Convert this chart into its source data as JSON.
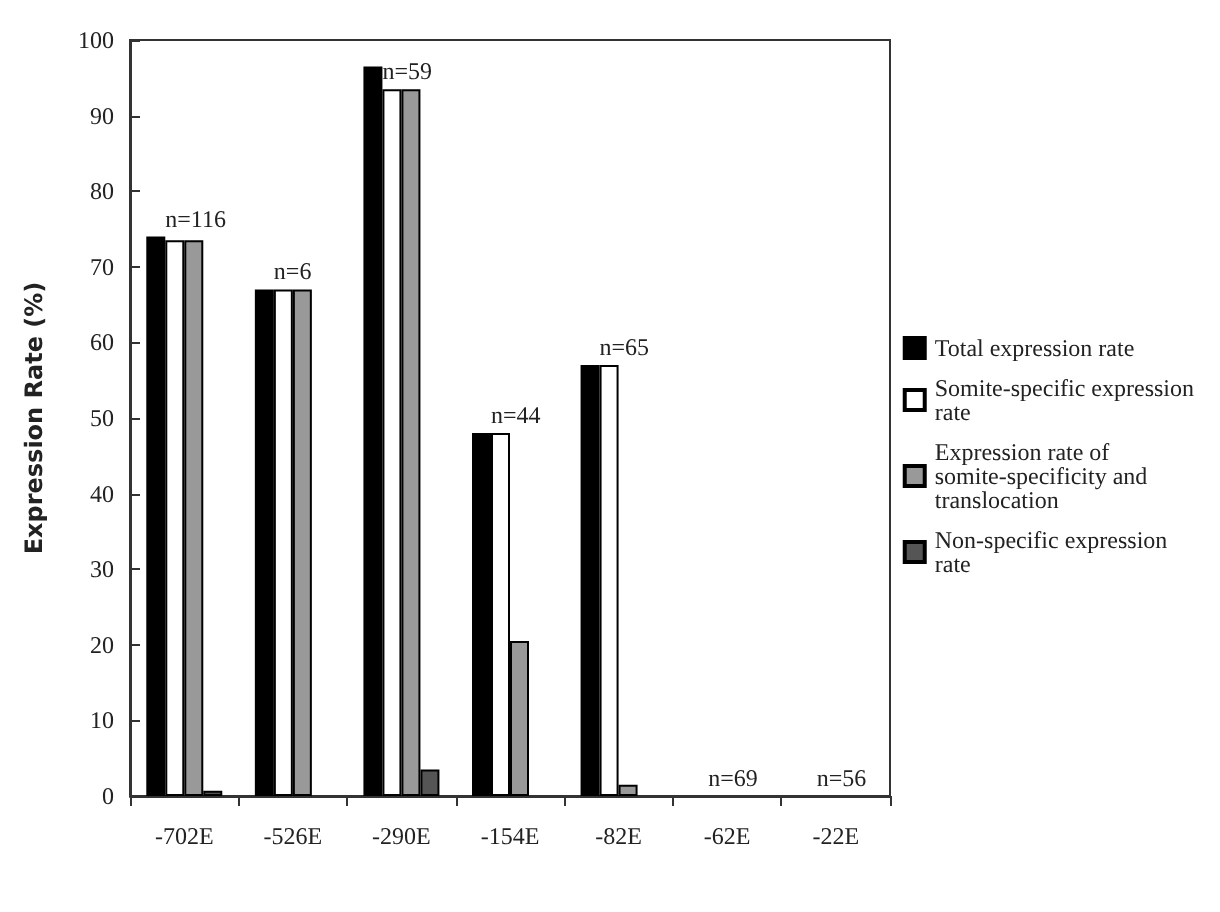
{
  "chart_data": {
    "type": "bar",
    "ylabel": "Expression Rate (%)",
    "categories": [
      "-702E",
      "-526E",
      "-290E",
      "-154E",
      "-82E",
      "-62E",
      "-22E"
    ],
    "series": [
      {
        "name": "Total expression rate",
        "color": "#000000",
        "values": [
          74,
          67,
          96.5,
          48,
          57,
          0,
          0
        ]
      },
      {
        "name": "Somite-specific expression rate",
        "color": "#ffffff",
        "values": [
          73.5,
          67,
          93.5,
          48,
          57,
          0,
          0
        ]
      },
      {
        "name": "Expression rate of somite-specificity and translocation",
        "color": "#999999",
        "values": [
          73.5,
          67,
          93.5,
          20.5,
          1.5,
          0,
          0
        ]
      },
      {
        "name": "Non-specific expression rate",
        "color": "#555555",
        "values": [
          0.7,
          0,
          3.5,
          0,
          0,
          0,
          0
        ]
      }
    ],
    "ylim": [
      0,
      100
    ],
    "yticks": [
      0,
      10,
      20,
      30,
      40,
      50,
      60,
      70,
      80,
      90,
      100
    ],
    "grid": false,
    "legend": "right",
    "annotations": [
      {
        "text": "n=116",
        "x": "-702E",
        "y": 74
      },
      {
        "text": "n=6",
        "x": "-526E",
        "y": 67
      },
      {
        "text": "n=59",
        "x": "-290E",
        "y": 93.5
      },
      {
        "text": "n=44",
        "x": "-154E",
        "y": 48
      },
      {
        "text": "n=65",
        "x": "-82E",
        "y": 57
      },
      {
        "text": "n=69",
        "x": "-62E",
        "y": 0
      },
      {
        "text": "n=56",
        "x": "-22E",
        "y": 0
      }
    ]
  }
}
